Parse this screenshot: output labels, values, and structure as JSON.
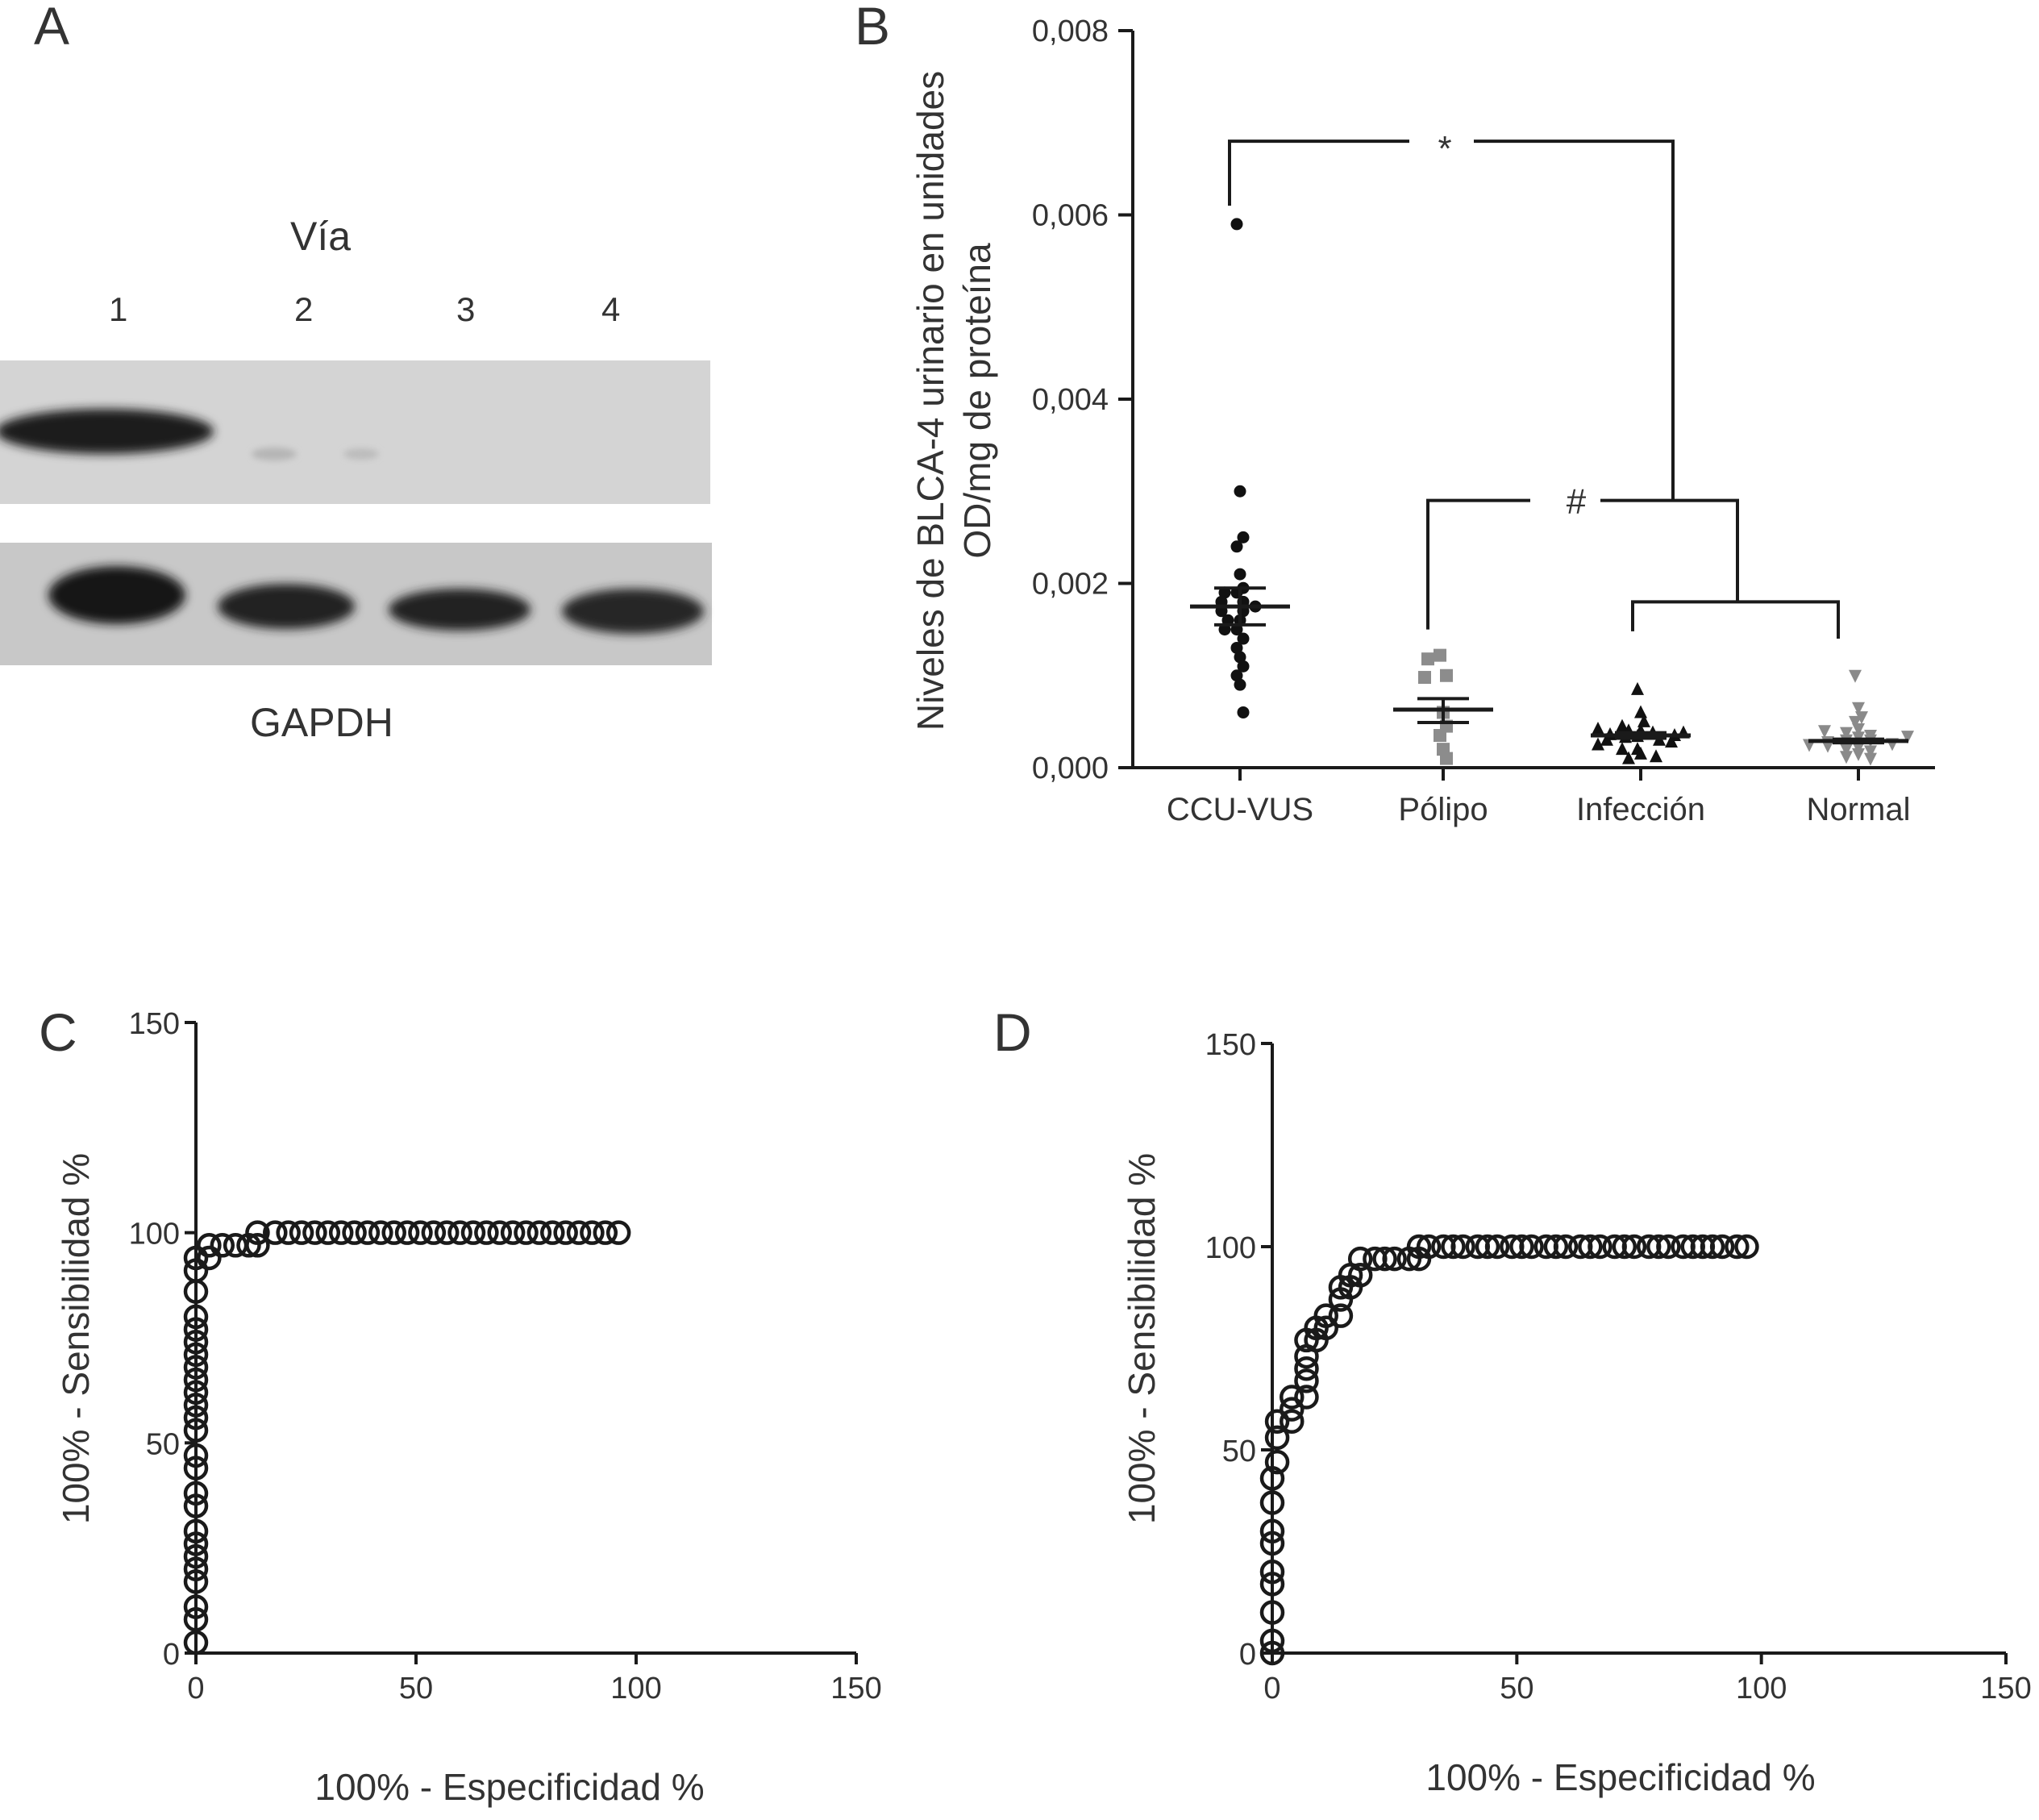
{
  "panels": {
    "A": {
      "letter": "A",
      "lane_title": "Vía",
      "lanes": [
        "1",
        "2",
        "3",
        "4"
      ],
      "loading_label": "GAPDH"
    },
    "B": {
      "letter": "B"
    },
    "C": {
      "letter": "C"
    },
    "D": {
      "letter": "D"
    }
  },
  "colors": {
    "axis": "#1a1a1a",
    "text": "#333333",
    "black_marker": "#111111",
    "polipo_marker": "#8c8c8c",
    "normal_marker": "#8a8a8a",
    "blot_bg": "#d2d2d2"
  },
  "chart_data": [
    {
      "panel": "B",
      "type": "scatter",
      "ylabel_lines": [
        "Niveles de BLCA-4 urinario en unidades",
        "OD/mg de proteína"
      ],
      "ylim": [
        0,
        0.008
      ],
      "yticks": [
        "0,000",
        "0,002",
        "0,004",
        "0,006",
        "0,008"
      ],
      "categories": [
        "CCU-VUS",
        "Pólipo",
        "Infección",
        "Normal"
      ],
      "series": [
        {
          "category": "CCU-VUS",
          "marker": "circle",
          "mean": 0.00175,
          "sem_upper": 0.00195,
          "sem_lower": 0.00155,
          "values": [
            0.0059,
            0.003,
            0.0025,
            0.0024,
            0.0021,
            0.00195,
            0.0019,
            0.0019,
            0.0018,
            0.0018,
            0.00175,
            0.0017,
            0.0017,
            0.0016,
            0.0016,
            0.0015,
            0.0015,
            0.0014,
            0.0013,
            0.0012,
            0.0011,
            0.001,
            0.0009,
            0.0006
          ]
        },
        {
          "category": "Pólipo",
          "marker": "square",
          "mean": 0.00063,
          "sem_upper": 0.00075,
          "sem_lower": 0.00049,
          "values": [
            0.00122,
            0.00118,
            0.001,
            0.00098,
            0.0006,
            0.00045,
            0.00035,
            0.0002,
            0.0001
          ]
        },
        {
          "category": "Infección",
          "marker": "triangle-up",
          "mean": 0.00035,
          "sem_upper": 0.00038,
          "sem_lower": 0.00032,
          "values": [
            0.00085,
            0.0006,
            0.0005,
            0.00045,
            0.0004,
            0.0004,
            0.00038,
            0.00036,
            0.00035,
            0.00034,
            0.00033,
            0.0003,
            0.0003,
            0.00028,
            0.00025,
            0.0002,
            0.00015,
            0.0001,
            0.0002,
            0.00012,
            0.00042,
            0.00038
          ]
        },
        {
          "category": "Normal",
          "marker": "triangle-down",
          "mean": 0.00029,
          "sem_upper": 0.00031,
          "sem_lower": 0.00027,
          "values": [
            0.001,
            0.00065,
            0.00055,
            0.0005,
            0.00042,
            0.00038,
            0.00035,
            0.00033,
            0.0003,
            0.0003,
            0.00028,
            0.00026,
            0.00025,
            0.00022,
            0.0002,
            0.00018,
            0.00015,
            0.00012,
            0.0001,
            0.00024,
            0.00034,
            0.0004
          ]
        }
      ],
      "annotations": [
        {
          "symbol": "*",
          "from": "CCU-VUS",
          "to": "Infección + Normal",
          "level": 0.0068
        },
        {
          "symbol": "#",
          "from": "Pólipo",
          "to": "Infección + Normal",
          "level": 0.0029
        },
        {
          "symbol": "",
          "from": "Infección",
          "to": "Normal",
          "level": 0.0018
        }
      ]
    },
    {
      "panel": "C",
      "type": "scatter",
      "xlabel": "100% - Especificidad %",
      "ylabel": "100% - Sensibilidad %",
      "xlim": [
        0,
        150
      ],
      "ylim": [
        0,
        150
      ],
      "xticks": [
        "0",
        "50",
        "100",
        "150"
      ],
      "yticks": [
        "0",
        "50",
        "100",
        "150"
      ],
      "points": [
        [
          0,
          2.5
        ],
        [
          0,
          8
        ],
        [
          0,
          11
        ],
        [
          0,
          17
        ],
        [
          0,
          20
        ],
        [
          0,
          23
        ],
        [
          0,
          26
        ],
        [
          0,
          29
        ],
        [
          0,
          35
        ],
        [
          0,
          38
        ],
        [
          0,
          44
        ],
        [
          0,
          47
        ],
        [
          0,
          53
        ],
        [
          0,
          56
        ],
        [
          0,
          59
        ],
        [
          0,
          62
        ],
        [
          0,
          65
        ],
        [
          0,
          68
        ],
        [
          0,
          71
        ],
        [
          0,
          74
        ],
        [
          0,
          77
        ],
        [
          0,
          80
        ],
        [
          0,
          86
        ],
        [
          0,
          91
        ],
        [
          0,
          94
        ],
        [
          3,
          94
        ],
        [
          3,
          97
        ],
        [
          6,
          97
        ],
        [
          9,
          97
        ],
        [
          12,
          97
        ],
        [
          14,
          97
        ],
        [
          14,
          100
        ],
        [
          18,
          100
        ],
        [
          21,
          100
        ],
        [
          24,
          100
        ],
        [
          27,
          100
        ],
        [
          30,
          100
        ],
        [
          33,
          100
        ],
        [
          36,
          100
        ],
        [
          39,
          100
        ],
        [
          42,
          100
        ],
        [
          45,
          100
        ],
        [
          48,
          100
        ],
        [
          51,
          100
        ],
        [
          54,
          100
        ],
        [
          57,
          100
        ],
        [
          60,
          100
        ],
        [
          63,
          100
        ],
        [
          66,
          100
        ],
        [
          69,
          100
        ],
        [
          72,
          100
        ],
        [
          75,
          100
        ],
        [
          78,
          100
        ],
        [
          81,
          100
        ],
        [
          84,
          100
        ],
        [
          87,
          100
        ],
        [
          90,
          100
        ],
        [
          93,
          100
        ],
        [
          96,
          100
        ]
      ]
    },
    {
      "panel": "D",
      "type": "scatter",
      "xlabel": "100% - Especificidad %",
      "ylabel": "100% - Sensibilidad %",
      "xlim": [
        0,
        150
      ],
      "ylim": [
        0,
        150
      ],
      "xticks": [
        "0",
        "50",
        "100",
        "150"
      ],
      "yticks": [
        "0",
        "50",
        "100",
        "150"
      ],
      "points": [
        [
          0,
          0
        ],
        [
          0,
          3
        ],
        [
          0,
          10
        ],
        [
          0,
          17
        ],
        [
          0,
          20
        ],
        [
          0,
          27
        ],
        [
          0,
          30
        ],
        [
          0,
          37
        ],
        [
          0,
          43
        ],
        [
          1,
          47
        ],
        [
          1,
          53
        ],
        [
          1,
          57
        ],
        [
          4,
          57
        ],
        [
          4,
          60
        ],
        [
          4,
          63
        ],
        [
          7,
          63
        ],
        [
          7,
          67
        ],
        [
          7,
          70
        ],
        [
          7,
          73
        ],
        [
          7,
          77
        ],
        [
          9,
          77
        ],
        [
          9,
          80
        ],
        [
          11,
          80
        ],
        [
          11,
          83
        ],
        [
          14,
          83
        ],
        [
          14,
          87
        ],
        [
          14,
          90
        ],
        [
          16,
          90
        ],
        [
          16,
          93
        ],
        [
          18,
          93
        ],
        [
          18,
          97
        ],
        [
          21,
          97
        ],
        [
          23,
          97
        ],
        [
          25,
          97
        ],
        [
          28,
          97
        ],
        [
          30,
          97
        ],
        [
          30,
          100
        ],
        [
          32,
          100
        ],
        [
          35,
          100
        ],
        [
          37,
          100
        ],
        [
          39,
          100
        ],
        [
          42,
          100
        ],
        [
          44,
          100
        ],
        [
          46,
          100
        ],
        [
          49,
          100
        ],
        [
          51,
          100
        ],
        [
          53,
          100
        ],
        [
          56,
          100
        ],
        [
          58,
          100
        ],
        [
          60,
          100
        ],
        [
          63,
          100
        ],
        [
          65,
          100
        ],
        [
          67,
          100
        ],
        [
          70,
          100
        ],
        [
          72,
          100
        ],
        [
          74,
          100
        ],
        [
          77,
          100
        ],
        [
          79,
          100
        ],
        [
          81,
          100
        ],
        [
          84,
          100
        ],
        [
          86,
          100
        ],
        [
          88,
          100
        ],
        [
          90,
          100
        ],
        [
          92,
          100
        ],
        [
          95,
          100
        ],
        [
          97,
          100
        ]
      ]
    }
  ]
}
